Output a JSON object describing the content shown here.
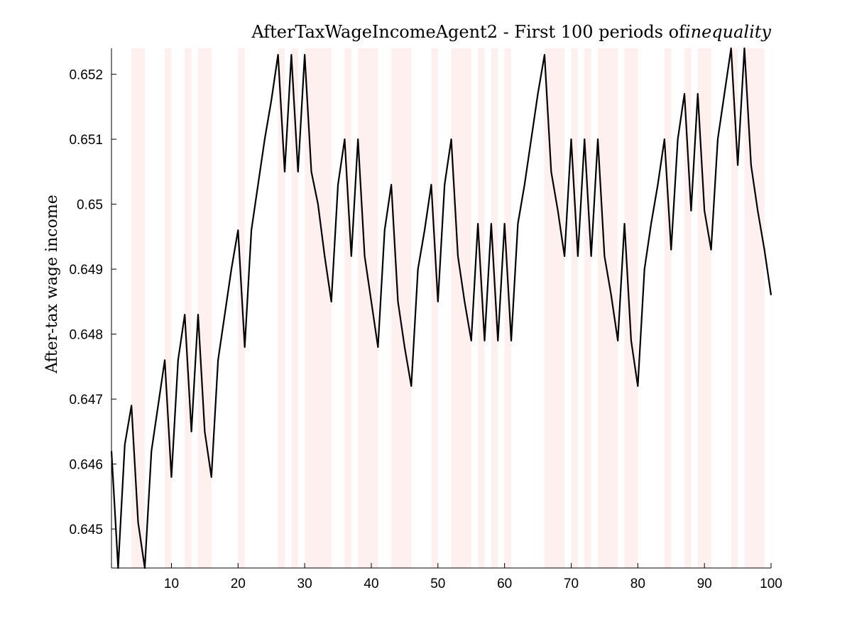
{
  "chart_data": {
    "type": "line",
    "title": "AfterTaxWageIncomeAgent2 - First 100 periods of",
    "title_emphasis": "inequality",
    "xlabel": "",
    "ylabel": "After-tax wage income",
    "xlim": [
      1,
      100
    ],
    "ylim": [
      0.6444,
      0.6524
    ],
    "grid": false,
    "x_ticks": [
      10,
      20,
      30,
      40,
      50,
      60,
      70,
      80,
      90,
      100
    ],
    "y_ticks": [
      0.645,
      0.646,
      0.647,
      0.648,
      0.649,
      0.65,
      0.651,
      0.652
    ],
    "y_tick_labels": [
      "0.645",
      "0.646",
      "0.647",
      "0.648",
      "0.649",
      "0.65",
      "0.651",
      "0.652"
    ],
    "colors": {
      "line": "#000000",
      "band": "#fff0f0"
    },
    "shaded_periods": [
      [
        4,
        6
      ],
      [
        9,
        10
      ],
      [
        12,
        13
      ],
      [
        14,
        16
      ],
      [
        20,
        21
      ],
      [
        26,
        27
      ],
      [
        28,
        29
      ],
      [
        30,
        34
      ],
      [
        36,
        37
      ],
      [
        38,
        41
      ],
      [
        43,
        46
      ],
      [
        49,
        50
      ],
      [
        52,
        55
      ],
      [
        56,
        57
      ],
      [
        58,
        59
      ],
      [
        60,
        61
      ],
      [
        66,
        69
      ],
      [
        70,
        71
      ],
      [
        72,
        73
      ],
      [
        74,
        77
      ],
      [
        78,
        80
      ],
      [
        84,
        85
      ],
      [
        87,
        88
      ],
      [
        89,
        91
      ],
      [
        94,
        95
      ],
      [
        96,
        99
      ]
    ],
    "series": [
      {
        "x": [
          1,
          2,
          3,
          4,
          5,
          6,
          7,
          8,
          9,
          10,
          11,
          12,
          13,
          14,
          15,
          16,
          17,
          18,
          19,
          20,
          21,
          22,
          23,
          24,
          25,
          26,
          27,
          28,
          29,
          30,
          31,
          32,
          33,
          34,
          35,
          36,
          37,
          38,
          39,
          40,
          41,
          42,
          43,
          44,
          45,
          46,
          47,
          48,
          49,
          50,
          51,
          52,
          53,
          54,
          55,
          56,
          57,
          58,
          59,
          60,
          61,
          62,
          63,
          64,
          65,
          66,
          67,
          68,
          69,
          70,
          71,
          72,
          73,
          74,
          75,
          76,
          77,
          78,
          79,
          80,
          81,
          82,
          83,
          84,
          85,
          86,
          87,
          88,
          89,
          90,
          91,
          92,
          93,
          94,
          95,
          96,
          97,
          98,
          99,
          100
        ],
        "values": [
          0.6462,
          0.6444,
          0.6463,
          0.6469,
          0.6451,
          0.6444,
          0.6462,
          0.6469,
          0.6476,
          0.6458,
          0.6476,
          0.6483,
          0.6465,
          0.6483,
          0.6465,
          0.6458,
          0.6476,
          0.6483,
          0.649,
          0.6496,
          0.6478,
          0.6496,
          0.6503,
          0.651,
          0.6516,
          0.6523,
          0.6505,
          0.6523,
          0.6505,
          0.6523,
          0.6505,
          0.65,
          0.6492,
          0.6485,
          0.6503,
          0.651,
          0.6492,
          0.651,
          0.6492,
          0.6485,
          0.6478,
          0.6496,
          0.6503,
          0.6485,
          0.6478,
          0.6472,
          0.649,
          0.6496,
          0.6503,
          0.6485,
          0.6503,
          0.651,
          0.6492,
          0.6485,
          0.6479,
          0.6497,
          0.6479,
          0.6497,
          0.6479,
          0.6497,
          0.6479,
          0.6497,
          0.6503,
          0.651,
          0.6517,
          0.6523,
          0.6505,
          0.6499,
          0.6492,
          0.651,
          0.6492,
          0.651,
          0.6492,
          0.651,
          0.6492,
          0.6486,
          0.6479,
          0.6497,
          0.6479,
          0.6472,
          0.649,
          0.6497,
          0.6503,
          0.651,
          0.6493,
          0.651,
          0.6517,
          0.6499,
          0.6517,
          0.6499,
          0.6493,
          0.651,
          0.6517,
          0.6524,
          0.6506,
          0.6524,
          0.6506,
          0.6499,
          0.6493,
          0.6486
        ]
      }
    ]
  }
}
